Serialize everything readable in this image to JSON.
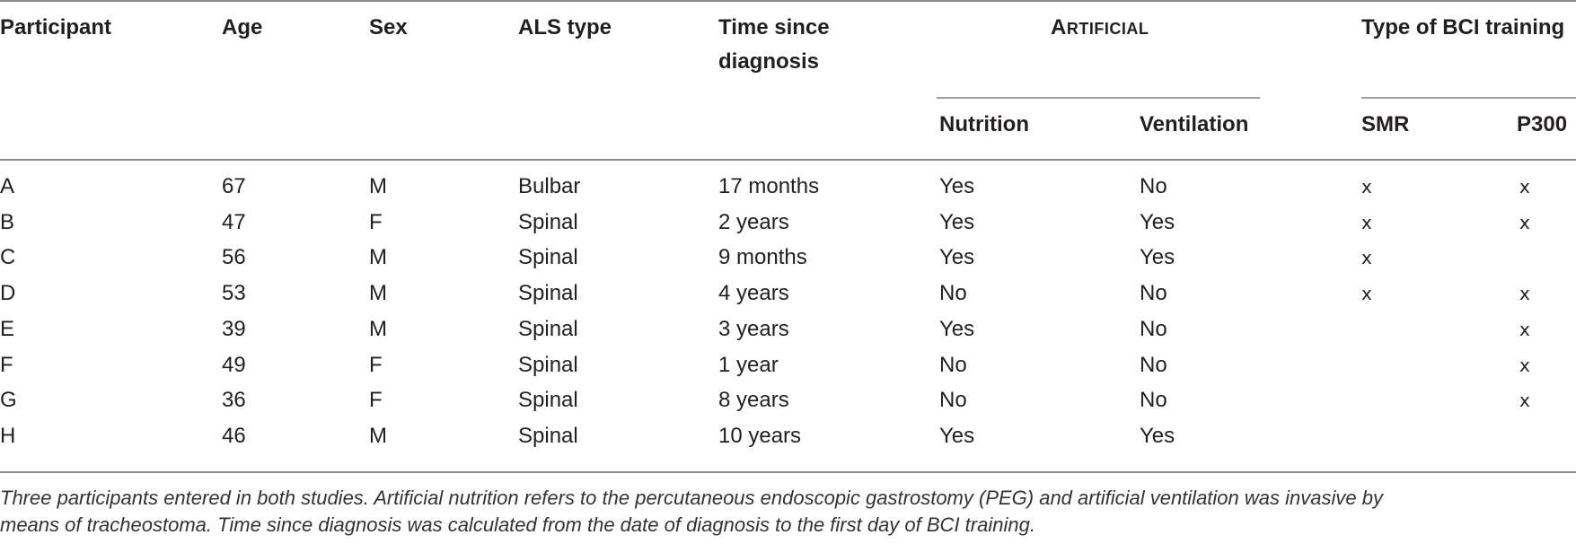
{
  "table": {
    "headers": {
      "participant": "Participant",
      "age": "Age",
      "sex": "Sex",
      "als_type": "ALS type",
      "time_since_diagnosis_line1": "Time since",
      "time_since_diagnosis_line2": "diagnosis",
      "artificial_cap": "A",
      "artificial_rest": "rtificial",
      "nutrition": "Nutrition",
      "ventilation": "Ventilation",
      "bci_training": "Type of BCI training",
      "smr": "SMR",
      "p300": "P300"
    },
    "rows": [
      {
        "participant": "A",
        "age": "67",
        "sex": "M",
        "als_type": "Bulbar",
        "time": "17 months",
        "nutrition": "Yes",
        "ventilation": "No",
        "smr": "x",
        "p300": "x"
      },
      {
        "participant": "B",
        "age": "47",
        "sex": "F",
        "als_type": "Spinal",
        "time": "2 years",
        "nutrition": "Yes",
        "ventilation": "Yes",
        "smr": "x",
        "p300": "x"
      },
      {
        "participant": "C",
        "age": "56",
        "sex": "M",
        "als_type": "Spinal",
        "time": "9 months",
        "nutrition": "Yes",
        "ventilation": "Yes",
        "smr": "x",
        "p300": ""
      },
      {
        "participant": "D",
        "age": "53",
        "sex": "M",
        "als_type": "Spinal",
        "time": "4 years",
        "nutrition": "No",
        "ventilation": "No",
        "smr": "x",
        "p300": "x"
      },
      {
        "participant": "E",
        "age": "39",
        "sex": "M",
        "als_type": "Spinal",
        "time": "3 years",
        "nutrition": "Yes",
        "ventilation": "No",
        "smr": "",
        "p300": "x"
      },
      {
        "participant": "F",
        "age": "49",
        "sex": "F",
        "als_type": "Spinal",
        "time": "1 year",
        "nutrition": "No",
        "ventilation": "No",
        "smr": "",
        "p300": "x"
      },
      {
        "participant": "G",
        "age": "36",
        "sex": "F",
        "als_type": "Spinal",
        "time": "8 years",
        "nutrition": "No",
        "ventilation": "No",
        "smr": "",
        "p300": "x"
      },
      {
        "participant": "H",
        "age": "46",
        "sex": "M",
        "als_type": "Spinal",
        "time": "10 years",
        "nutrition": "Yes",
        "ventilation": "Yes",
        "smr": "",
        "p300": ""
      }
    ]
  },
  "footnote": {
    "line1": "Three participants entered in both studies. Artificial nutrition refers to the percutaneous endoscopic gastrostomy (PEG) and artificial ventilation was invasive by",
    "line2": "means of tracheostoma. Time since diagnosis was calculated from the date of diagnosis to the first day of BCI training."
  }
}
